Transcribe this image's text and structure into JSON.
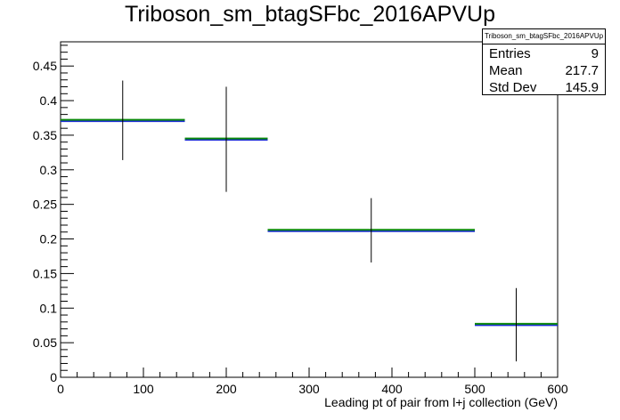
{
  "chart_data": {
    "type": "histogram",
    "title": "Triboson_sm_btagSFbc_2016APVUp",
    "xlabel": "Leading pt of pair from l+j collection (GeV)",
    "ylabel": "",
    "xlim": [
      0,
      600
    ],
    "ylim": [
      0,
      0.485
    ],
    "x_ticks": [
      "0",
      "100",
      "200",
      "300",
      "400",
      "500",
      "600"
    ],
    "y_ticks": [
      "0",
      "0.05",
      "0.1",
      "0.15",
      "0.2",
      "0.25",
      "0.3",
      "0.35",
      "0.4",
      "0.45"
    ],
    "grid": false,
    "bins": [
      {
        "xlow": 0,
        "xhigh": 150,
        "value": 0.371,
        "err_low": 0.314,
        "err_high": 0.429
      },
      {
        "xlow": 150,
        "xhigh": 250,
        "value": 0.344,
        "err_low": 0.268,
        "err_high": 0.42
      },
      {
        "xlow": 250,
        "xhigh": 500,
        "value": 0.212,
        "err_low": 0.166,
        "err_high": 0.259
      },
      {
        "xlow": 500,
        "xhigh": 600,
        "value": 0.076,
        "err_low": 0.023,
        "err_high": 0.129
      }
    ],
    "colors": {
      "nominal": "#1a2bd4",
      "variation": "#0d8a0d",
      "errors": "#000000"
    }
  },
  "stats": {
    "name": "Triboson_sm_btagSFbc_2016APVUp",
    "entries_label": "Entries",
    "entries": "9",
    "mean_label": "Mean",
    "mean": "217.7",
    "std_label": "Std Dev",
    "std": "145.9"
  }
}
